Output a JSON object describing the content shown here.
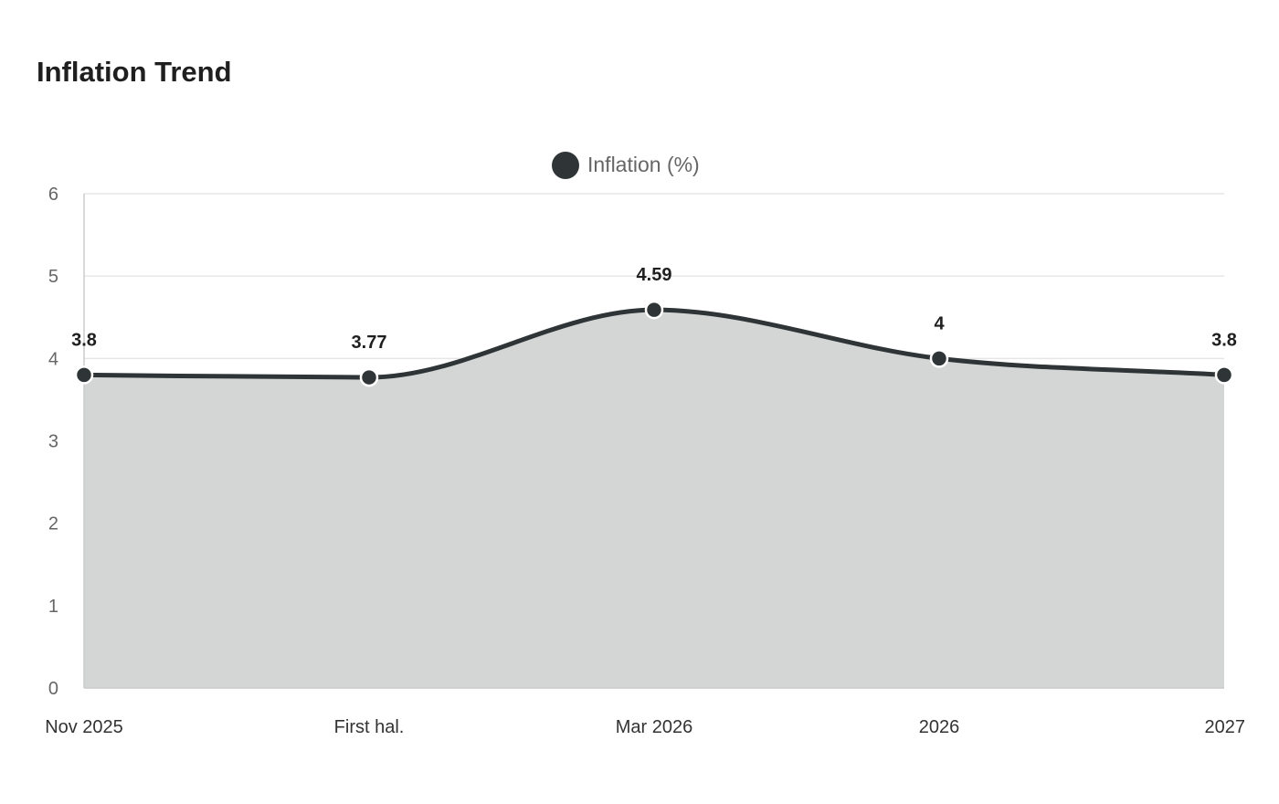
{
  "chart_data": {
    "type": "area",
    "title": "Inflation Trend",
    "categories": [
      "Nov 2025",
      "First hal.",
      "Mar 2026",
      "2026",
      "2027"
    ],
    "series": [
      {
        "name": "Inflation (%)",
        "values": [
          3.8,
          3.77,
          4.59,
          4,
          3.8
        ],
        "data_labels": [
          "3.8",
          "3.77",
          "4.59",
          "4",
          "3.8"
        ]
      }
    ],
    "ylim": [
      0,
      6
    ],
    "yticks": [
      "0",
      "1",
      "2",
      "3",
      "4",
      "5",
      "6"
    ],
    "xlabel": "",
    "ylabel": "",
    "grid": true,
    "legend_position": "top",
    "smooth": true,
    "colors": {
      "line": "#2f3436",
      "area_fill": "#d4d6d6",
      "grid": "#e6e6e6",
      "axis": "#cccccc"
    }
  }
}
